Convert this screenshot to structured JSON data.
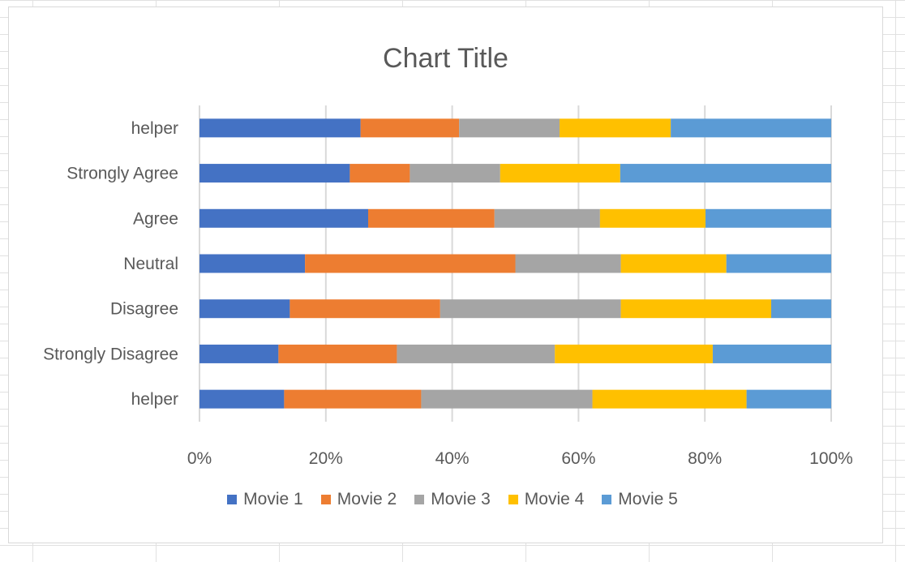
{
  "chart_data": {
    "type": "bar",
    "orientation": "horizontal",
    "stacked": "100%",
    "title": "Chart Title",
    "categories": [
      "helper",
      "Strongly Agree",
      "Agree",
      "Neutral",
      "Disagree",
      "Strongly Disagree",
      "helper"
    ],
    "series": [
      {
        "name": "Movie 1",
        "color": "#4472C4",
        "values": [
          25.5,
          23.8,
          26.7,
          16.7,
          14.3,
          12.5,
          13.4
        ]
      },
      {
        "name": "Movie 2",
        "color": "#ED7D31",
        "values": [
          15.6,
          9.5,
          20.0,
          33.3,
          23.8,
          18.75,
          21.7
        ]
      },
      {
        "name": "Movie 3",
        "color": "#A5A5A5",
        "values": [
          15.9,
          14.3,
          16.7,
          16.7,
          28.6,
          25.0,
          27.1
        ]
      },
      {
        "name": "Movie 4",
        "color": "#FFC000",
        "values": [
          17.6,
          19.0,
          16.7,
          16.7,
          23.8,
          25.0,
          24.4
        ]
      },
      {
        "name": "Movie 5",
        "color": "#5B9BD5",
        "values": [
          25.4,
          33.4,
          19.9,
          16.6,
          9.5,
          18.75,
          13.4
        ]
      }
    ],
    "xticks": [
      "0%",
      "20%",
      "40%",
      "60%",
      "80%",
      "100%"
    ],
    "xlim": [
      0,
      100
    ],
    "grid": true,
    "legend": "bottom"
  }
}
